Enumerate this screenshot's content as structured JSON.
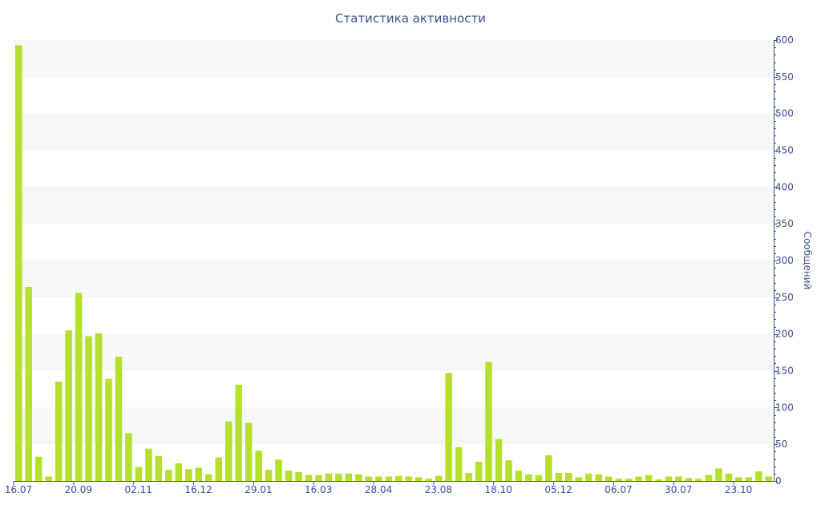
{
  "chart_data": {
    "type": "bar",
    "title": "Статистика активности",
    "xlabel": "",
    "ylabel": "Сообщений",
    "y_axis_position": "right",
    "ylim": [
      0,
      600
    ],
    "yticks": [
      0,
      50,
      100,
      150,
      200,
      250,
      300,
      350,
      400,
      450,
      500,
      550,
      600
    ],
    "xtick_labels": [
      {
        "index": 0,
        "label": "16.07"
      },
      {
        "index": 6,
        "label": "20.09"
      },
      {
        "index": 12,
        "label": "02.11"
      },
      {
        "index": 18,
        "label": "16.12"
      },
      {
        "index": 24,
        "label": "29.01"
      },
      {
        "index": 30,
        "label": "16.03"
      },
      {
        "index": 36,
        "label": "28.04"
      },
      {
        "index": 42,
        "label": "23.08"
      },
      {
        "index": 48,
        "label": "18.10"
      },
      {
        "index": 54,
        "label": "05.12"
      },
      {
        "index": 60,
        "label": "06.07"
      },
      {
        "index": 66,
        "label": "30.07"
      },
      {
        "index": 72,
        "label": "23.10"
      }
    ],
    "values": [
      593,
      264,
      33,
      6,
      135,
      205,
      256,
      197,
      201,
      139,
      169,
      65,
      19,
      44,
      34,
      15,
      24,
      16,
      18,
      9,
      32,
      81,
      131,
      79,
      41,
      15,
      29,
      14,
      12,
      8,
      8,
      10,
      10,
      10,
      9,
      6,
      6,
      6,
      7,
      6,
      5,
      3,
      7,
      147,
      46,
      11,
      26,
      162,
      57,
      28,
      14,
      9,
      8,
      35,
      11,
      11,
      5,
      10,
      9,
      6,
      3,
      3,
      6,
      8,
      2,
      6,
      6,
      4,
      3,
      8,
      17,
      10,
      5,
      5,
      13,
      6
    ],
    "bar_color": "#b5e02b",
    "band_color": "#f7f7f7",
    "text_color": "#3e4f8a",
    "grid": "alternating bands"
  }
}
